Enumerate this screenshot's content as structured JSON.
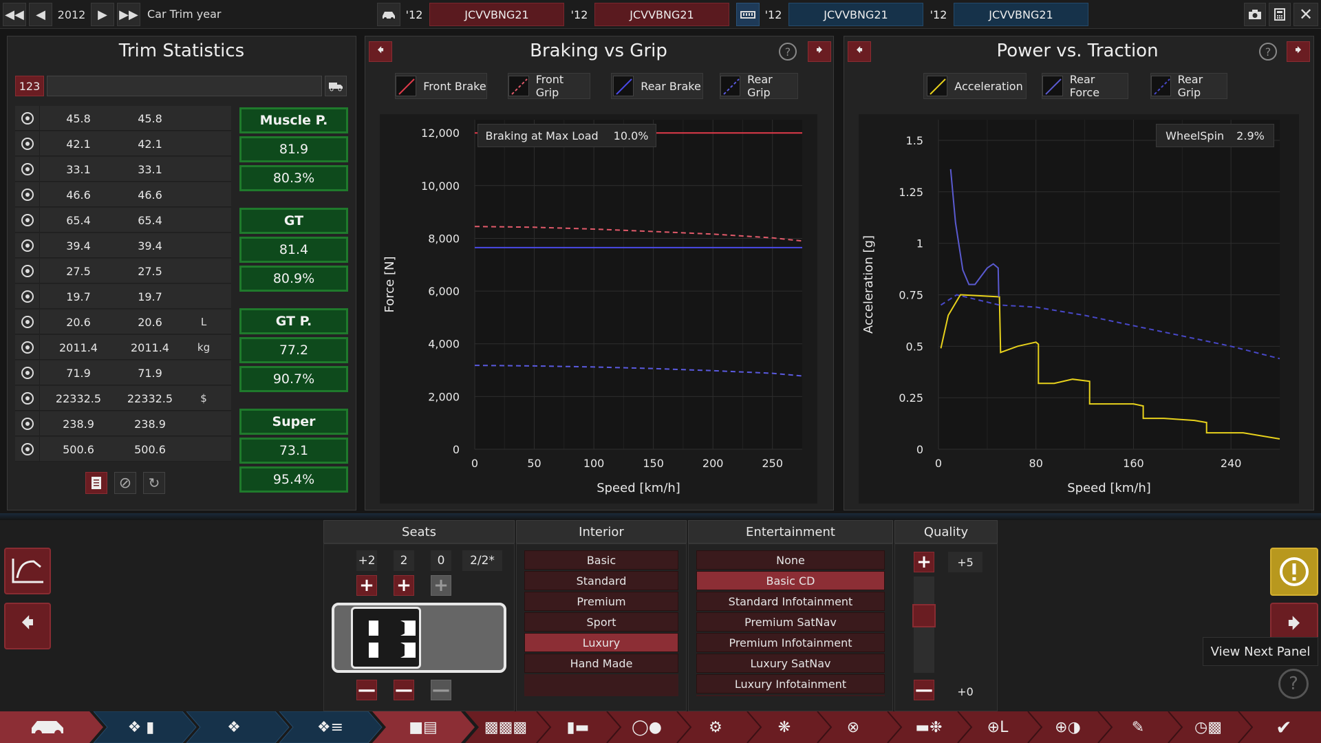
{
  "topbar": {
    "year": "2012",
    "mode_label": "Car Trim year",
    "trims": [
      {
        "year": "'12",
        "code": "JCVVBNG21"
      },
      {
        "year": "'12",
        "code": "JCVVBNG21"
      },
      {
        "year": "'12",
        "code": "JCVVBNG21"
      },
      {
        "year": "'12",
        "code": "JCVVBNG21"
      }
    ]
  },
  "trim_stats": {
    "title": "Trim Statistics",
    "search_prefix": "123",
    "rows": [
      {
        "icon": "steering-wheel-icon",
        "v1": "45.8",
        "v2": "45.8",
        "unit": ""
      },
      {
        "icon": "checkered-flag-icon",
        "v1": "42.1",
        "v2": "42.1",
        "unit": ""
      },
      {
        "icon": "seat-icon",
        "v1": "33.1",
        "v2": "33.1",
        "unit": ""
      },
      {
        "icon": "diamond-icon",
        "v1": "46.6",
        "v2": "46.6",
        "unit": ""
      },
      {
        "icon": "safety-icon",
        "v1": "65.4",
        "v2": "65.4",
        "unit": ""
      },
      {
        "icon": "people-icon",
        "v1": "39.4",
        "v2": "39.4",
        "unit": ""
      },
      {
        "icon": "truck-icon",
        "v1": "27.5",
        "v2": "27.5",
        "unit": ""
      },
      {
        "icon": "offroad-icon",
        "v1": "19.7",
        "v2": "19.7",
        "unit": ""
      },
      {
        "icon": "fuel-icon",
        "v1": "20.6",
        "v2": "20.6",
        "unit": "L"
      },
      {
        "icon": "weight-icon",
        "v1": "2011.4",
        "v2": "2011.4",
        "unit": "kg"
      },
      {
        "icon": "service-icon",
        "v1": "71.9",
        "v2": "71.9",
        "unit": ""
      },
      {
        "icon": "cost-icon",
        "v1": "22332.5",
        "v2": "22332.5",
        "unit": "$"
      },
      {
        "icon": "manufacture-icon",
        "v1": "238.9",
        "v2": "238.9",
        "unit": ""
      },
      {
        "icon": "gear-icon",
        "v1": "500.6",
        "v2": "500.6",
        "unit": ""
      }
    ],
    "markets": [
      {
        "name": "Muscle P.",
        "score": "81.9",
        "pct": "80.3%"
      },
      {
        "name": "GT",
        "score": "81.4",
        "pct": "80.9%"
      },
      {
        "name": "GT P.",
        "score": "77.2",
        "pct": "90.7%"
      },
      {
        "name": "Super",
        "score": "73.1",
        "pct": "95.4%"
      }
    ]
  },
  "braking": {
    "title": "Braking vs Grip",
    "legend": [
      "Front Brake",
      "Front Grip",
      "Rear Brake",
      "Rear Grip"
    ],
    "info_label": "Braking at Max Load",
    "info_value": "10.0%",
    "xlabel": "Speed [km/h]",
    "ylabel": "Force [N]",
    "xticks": [
      "0",
      "50",
      "100",
      "150",
      "200",
      "250"
    ],
    "yticks": [
      "0",
      "2,000",
      "4,000",
      "6,000",
      "8,000",
      "10,000",
      "12,000"
    ]
  },
  "power": {
    "title": "Power vs. Traction",
    "legend": [
      "Acceleration",
      "Rear Force",
      "Rear Grip"
    ],
    "info_label": "WheelSpin",
    "info_value": "2.9%",
    "xlabel": "Speed [km/h]",
    "ylabel": "Acceleration [g]",
    "xticks": [
      "0",
      "80",
      "160",
      "240"
    ],
    "yticks": [
      "0",
      "0.25",
      "0.5",
      "0.75",
      "1",
      "1.25",
      "1.5"
    ]
  },
  "chart_data": [
    {
      "type": "line",
      "title": "Braking vs Grip",
      "xlabel": "Speed [km/h]",
      "ylabel": "Force [N]",
      "xlim": [
        0,
        275
      ],
      "ylim": [
        0,
        12500
      ],
      "series": [
        {
          "name": "Front Brake",
          "color": "#e23b4b",
          "dash": false,
          "x": [
            0,
            275
          ],
          "y": [
            12000,
            12000
          ]
        },
        {
          "name": "Front Grip",
          "color": "#e25a6a",
          "dash": true,
          "x": [
            0,
            50,
            100,
            150,
            200,
            250,
            275
          ],
          "y": [
            8450,
            8420,
            8350,
            8260,
            8160,
            8020,
            7900
          ]
        },
        {
          "name": "Rear Brake",
          "color": "#4a4ae8",
          "dash": false,
          "x": [
            0,
            275
          ],
          "y": [
            7650,
            7650
          ]
        },
        {
          "name": "Rear Grip",
          "color": "#5a5ae0",
          "dash": true,
          "x": [
            0,
            50,
            100,
            150,
            200,
            250,
            275
          ],
          "y": [
            3180,
            3160,
            3120,
            3060,
            2980,
            2880,
            2780
          ]
        }
      ]
    },
    {
      "type": "line",
      "title": "Power vs. Traction",
      "xlabel": "Speed [km/h]",
      "ylabel": "Acceleration [g]",
      "xlim": [
        0,
        280
      ],
      "ylim": [
        0,
        1.6
      ],
      "series": [
        {
          "name": "Acceleration",
          "color": "#e8d21c",
          "dash": false,
          "x": [
            2,
            8,
            18,
            50,
            51,
            65,
            80,
            82,
            82,
            95,
            110,
            124,
            124,
            140,
            160,
            168,
            168,
            185,
            210,
            220,
            220,
            250,
            280
          ],
          "y": [
            0.49,
            0.65,
            0.75,
            0.74,
            0.47,
            0.5,
            0.52,
            0.51,
            0.32,
            0.32,
            0.34,
            0.33,
            0.22,
            0.22,
            0.22,
            0.21,
            0.15,
            0.15,
            0.14,
            0.13,
            0.08,
            0.08,
            0.05
          ]
        },
        {
          "name": "Rear Force",
          "color": "#5a5ad0",
          "dash": false,
          "x": [
            10,
            14,
            20,
            25,
            30,
            35,
            40,
            45,
            49,
            49.5
          ],
          "y": [
            1.36,
            1.1,
            0.87,
            0.8,
            0.8,
            0.84,
            0.88,
            0.9,
            0.88,
            0.74
          ]
        },
        {
          "name": "Rear Grip",
          "color": "#4848c8",
          "dash": true,
          "x": [
            2,
            15,
            50,
            80,
            120,
            160,
            200,
            240,
            280
          ],
          "y": [
            0.7,
            0.75,
            0.7,
            0.69,
            0.65,
            0.6,
            0.55,
            0.5,
            0.44
          ]
        }
      ]
    }
  ],
  "bottom": {
    "seats": {
      "title": "Seats",
      "counts": [
        "+2",
        "2",
        "0",
        "2/2*"
      ]
    },
    "interior": {
      "title": "Interior",
      "options": [
        "Basic",
        "Standard",
        "Premium",
        "Sport",
        "Luxury",
        "Hand Made"
      ],
      "selected": "Luxury"
    },
    "entertainment": {
      "title": "Entertainment",
      "options": [
        "None",
        "Basic CD",
        "Standard Infotainment",
        "Premium SatNav",
        "Premium Infotainment",
        "Luxury SatNav",
        "Luxury Infotainment"
      ],
      "selected": "Basic CD"
    },
    "quality": {
      "title": "Quality",
      "top_value": "+5",
      "bottom_value": "+0"
    },
    "tooltip": "View Next Panel"
  },
  "colors": {
    "accent_red": "#6a1d22",
    "accent_green": "#1f7a2c",
    "accent_blue": "#16324a"
  }
}
